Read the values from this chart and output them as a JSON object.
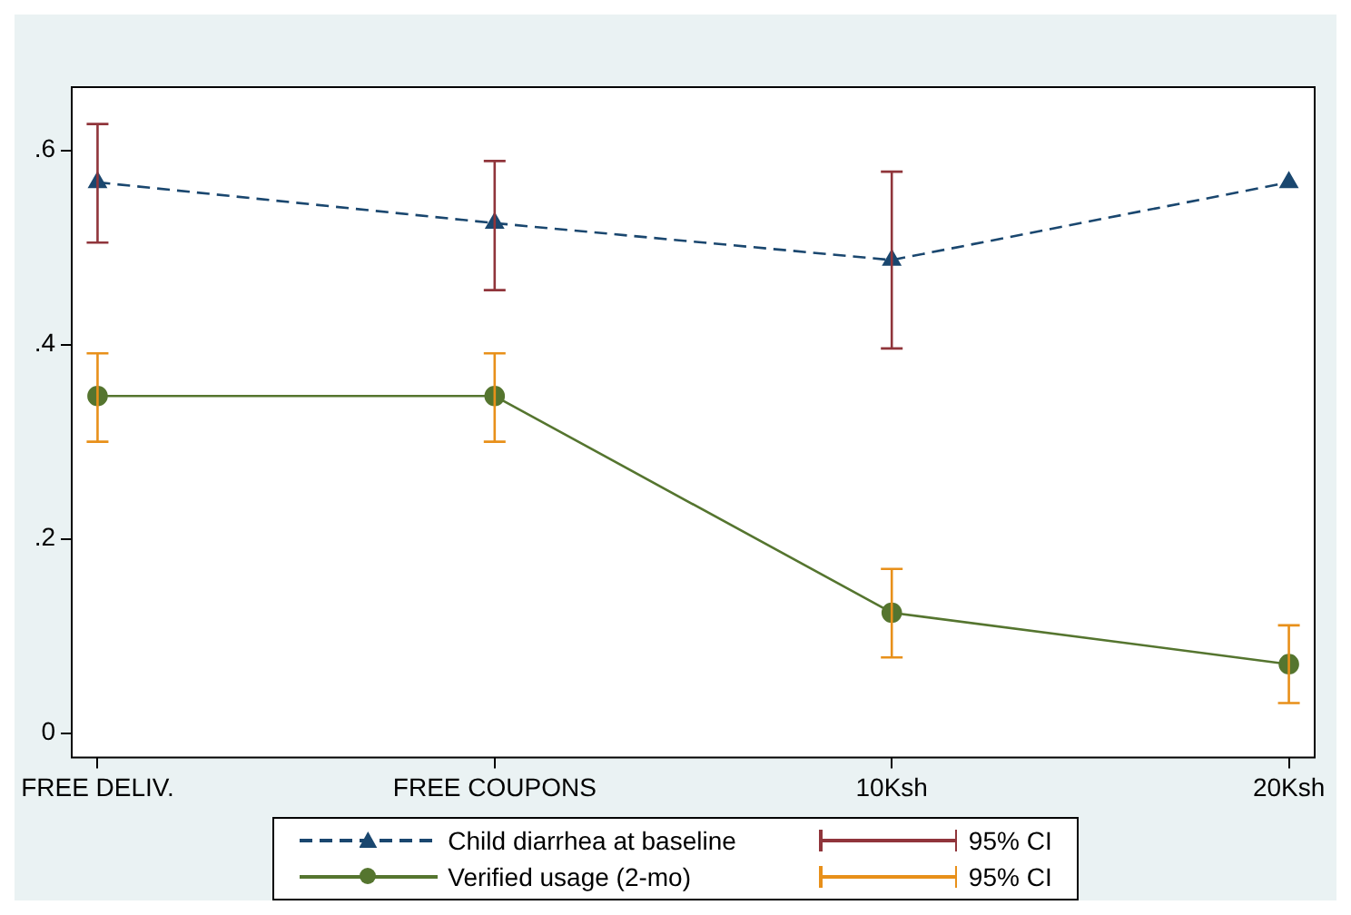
{
  "chart_data": {
    "type": "line",
    "categories": [
      "FREE DELIV.",
      "FREE COUPONS",
      "10Ksh",
      "20Ksh"
    ],
    "series": [
      {
        "name": "Child diarrhea at baseline",
        "color": "#1a476f",
        "marker": "triangle",
        "line_style": "dashed",
        "values": [
          0.567,
          0.525,
          0.487,
          0.567
        ],
        "errors": [
          [
            0.505,
            0.627
          ],
          [
            0.456,
            0.589
          ],
          [
            0.396,
            0.578
          ],
          null
        ]
      },
      {
        "name": "Verified usage (2-mo)",
        "color": "#55752f",
        "marker": "circle",
        "line_style": "solid",
        "values": [
          0.347,
          0.347,
          0.124,
          0.071
        ],
        "errors": [
          [
            0.3,
            0.391
          ],
          [
            0.3,
            0.391
          ],
          [
            0.078,
            0.169
          ],
          [
            0.031,
            0.111
          ]
        ]
      }
    ],
    "annotations": [
      "95% CI",
      "95% CI"
    ],
    "ylim": [
      -0.025,
      0.665
    ],
    "yticks": [
      0,
      {
        "value": 0.2,
        "label": ".2"
      },
      {
        "value": 0.4,
        "label": ".4"
      },
      {
        "value": 0.6,
        "label": ".6"
      }
    ],
    "grid": false,
    "legend": "bottom"
  }
}
